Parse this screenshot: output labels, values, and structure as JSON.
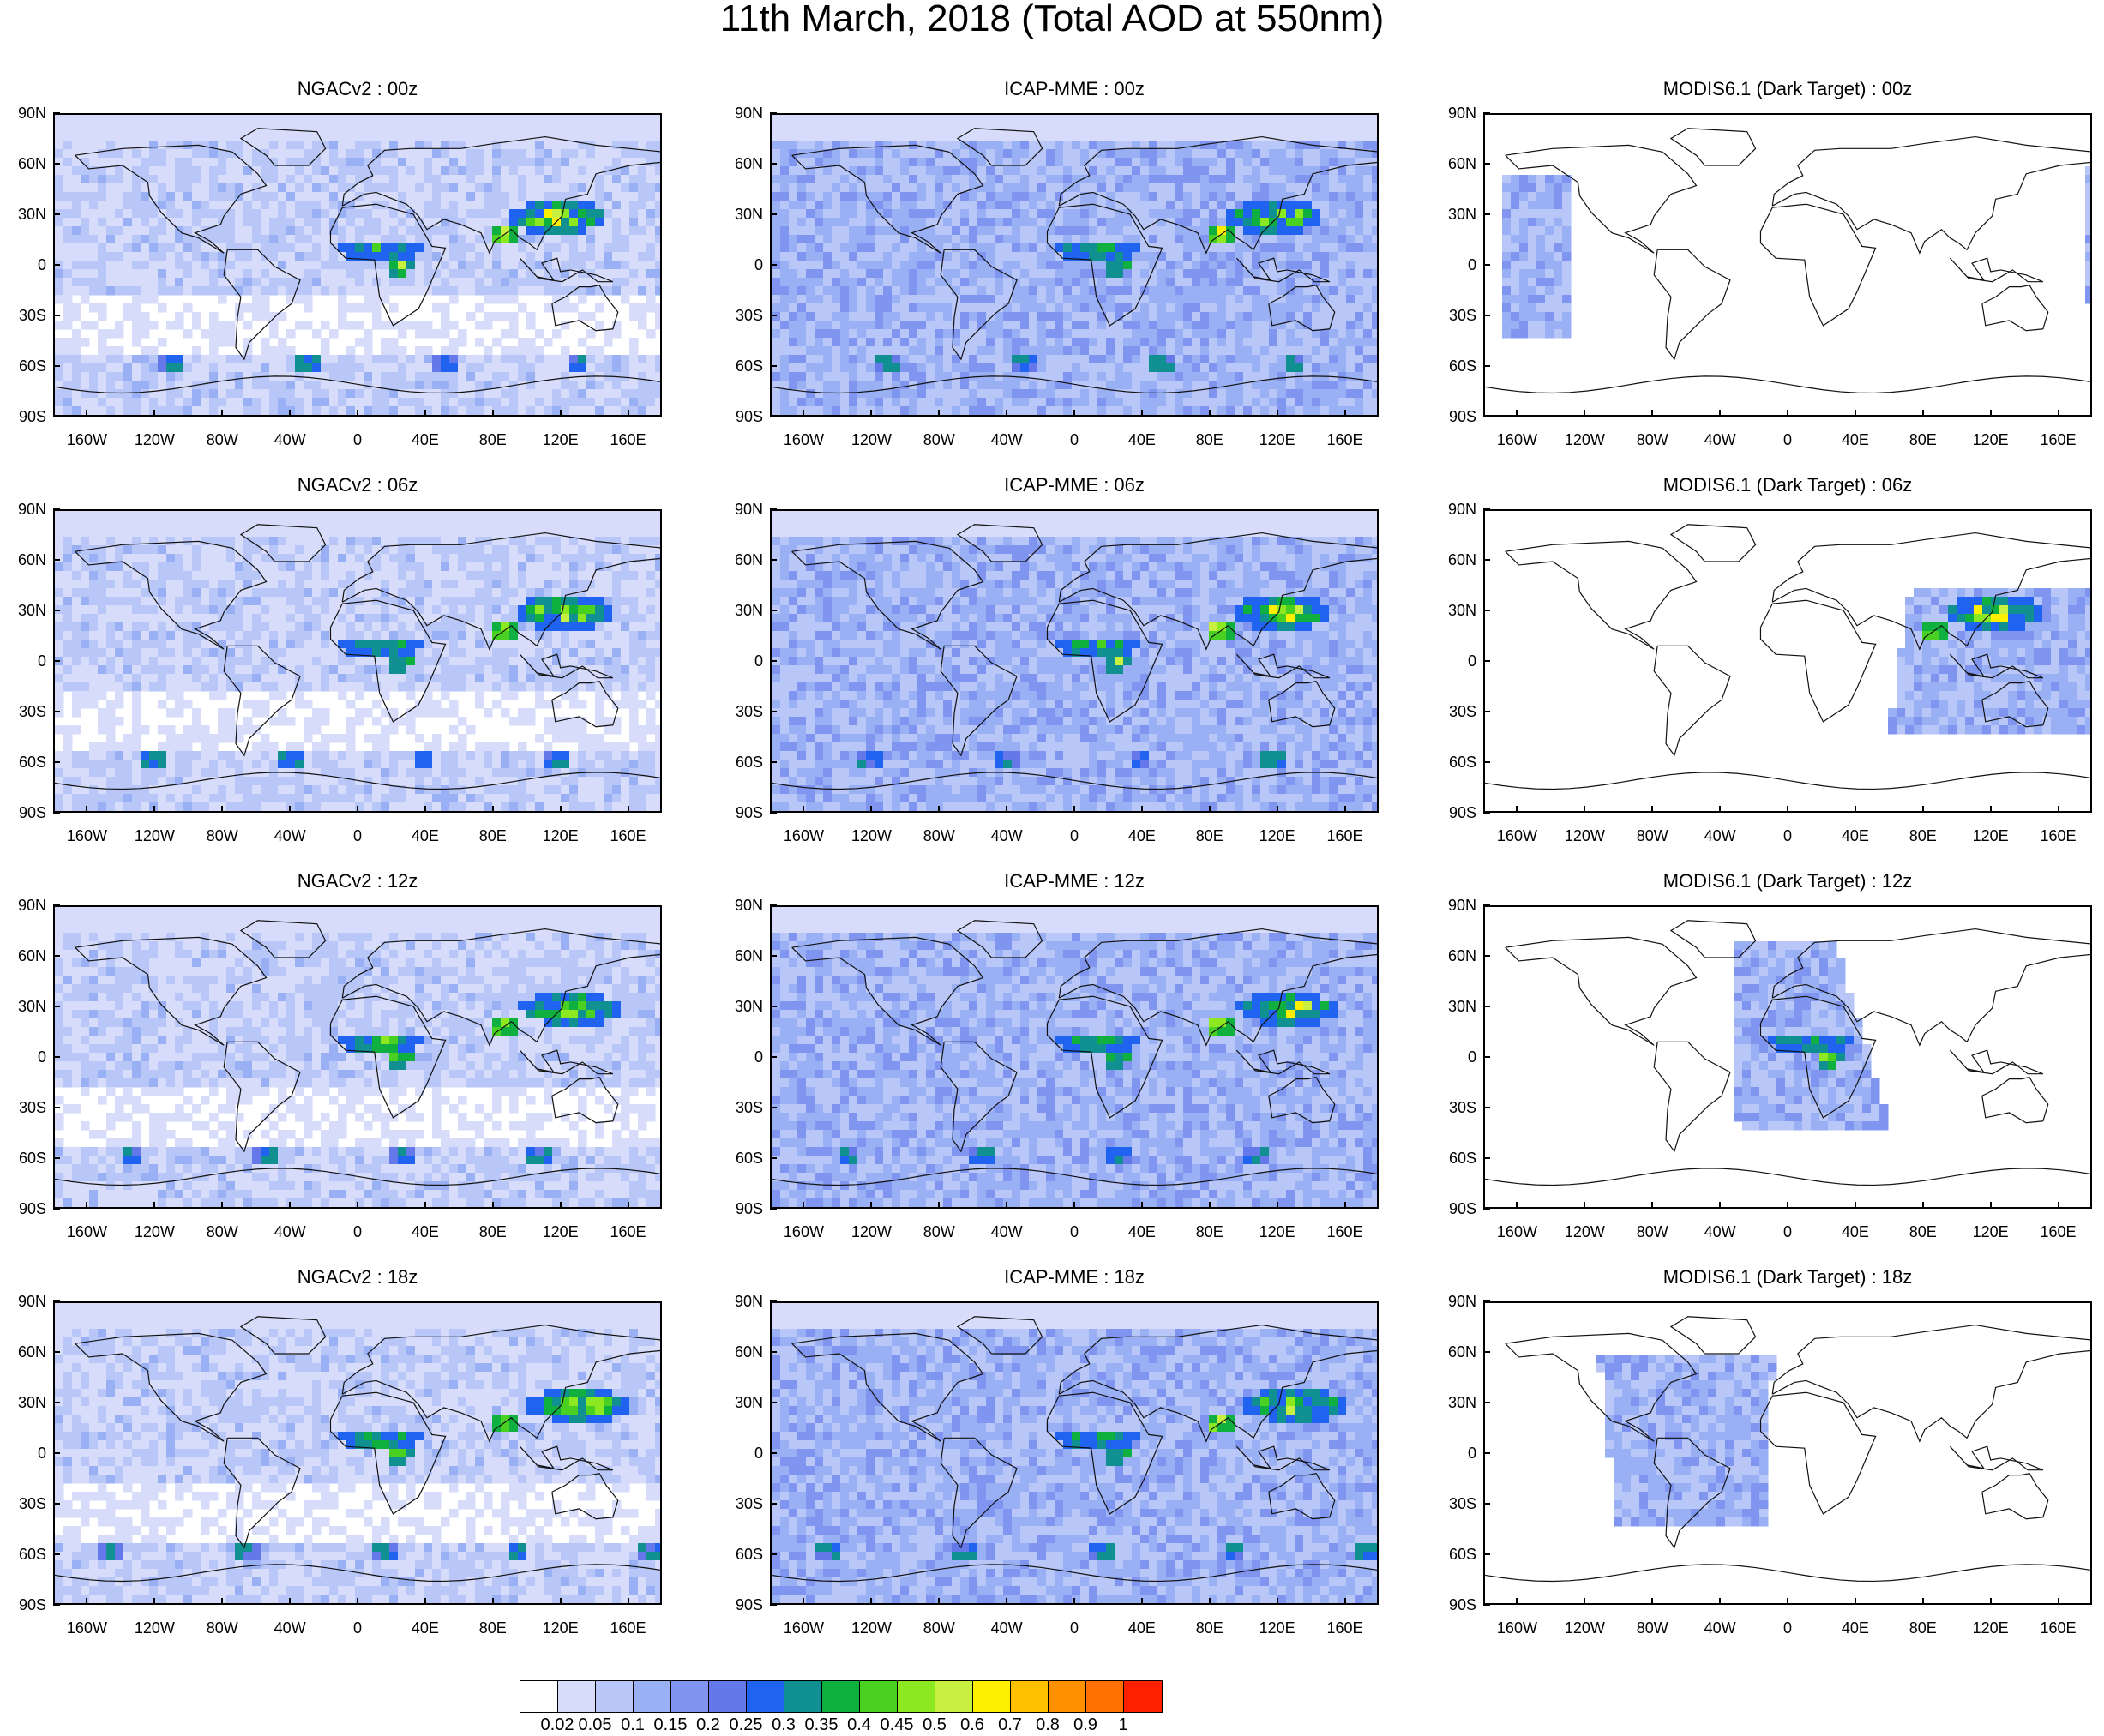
{
  "title": "11th March, 2018 (Total AOD at 550nm)",
  "lat_labels": [
    "90N",
    "60N",
    "30N",
    "0",
    "30S",
    "60S",
    "90S"
  ],
  "lon_labels": [
    "160W",
    "120W",
    "80W",
    "40W",
    "0",
    "40E",
    "80E",
    "120E",
    "160E"
  ],
  "panels": [
    {
      "title": "NGACv2 : 00z",
      "model": "NGACv2",
      "time": "00z",
      "coverage": "global"
    },
    {
      "title": "ICAP-MME : 00z",
      "model": "ICAP-MME",
      "time": "00z",
      "coverage": "global"
    },
    {
      "title": "MODIS6.1 (Dark Target) : 00z",
      "model": "MODIS6.1",
      "time": "00z",
      "coverage": "swath-pacific"
    },
    {
      "title": "NGACv2 : 06z",
      "model": "NGACv2",
      "time": "06z",
      "coverage": "global"
    },
    {
      "title": "ICAP-MME : 06z",
      "model": "ICAP-MME",
      "time": "06z",
      "coverage": "global"
    },
    {
      "title": "MODIS6.1 (Dark Target) : 06z",
      "model": "MODIS6.1",
      "time": "06z",
      "coverage": "swath-asia"
    },
    {
      "title": "NGACv2 : 12z",
      "model": "NGACv2",
      "time": "12z",
      "coverage": "global"
    },
    {
      "title": "ICAP-MME : 12z",
      "model": "ICAP-MME",
      "time": "12z",
      "coverage": "global"
    },
    {
      "title": "MODIS6.1 (Dark Target) : 12z",
      "model": "MODIS6.1",
      "time": "12z",
      "coverage": "swath-africa"
    },
    {
      "title": "NGACv2 : 18z",
      "model": "NGACv2",
      "time": "18z",
      "coverage": "global"
    },
    {
      "title": "ICAP-MME : 18z",
      "model": "ICAP-MME",
      "time": "18z",
      "coverage": "global"
    },
    {
      "title": "MODIS6.1 (Dark Target) : 18z",
      "model": "MODIS6.1",
      "time": "18z",
      "coverage": "swath-americas"
    }
  ],
  "colorbar": {
    "labels": [
      "0.02",
      "0.05",
      "0.1",
      "0.15",
      "0.2",
      "0.25",
      "0.3",
      "0.35",
      "0.4",
      "0.45",
      "0.5",
      "0.6",
      "0.7",
      "0.8",
      "0.9",
      "1"
    ],
    "colors": [
      "#ffffff",
      "#d6dcfa",
      "#b8c6f8",
      "#9ab0f5",
      "#7f95ef",
      "#6478ea",
      "#1f63f0",
      "#109090",
      "#10b040",
      "#4ad020",
      "#8ce820",
      "#c8f040",
      "#fff000",
      "#ffc000",
      "#ff9000",
      "#ff7000",
      "#ff2000"
    ]
  }
}
